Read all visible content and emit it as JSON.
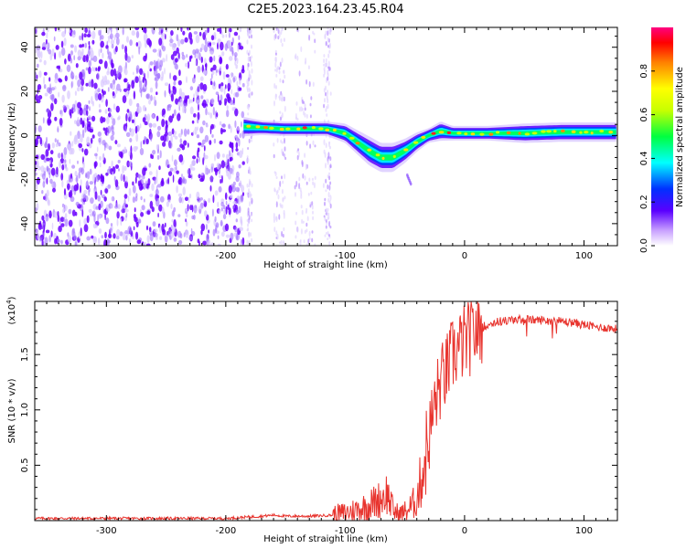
{
  "title": "C2E5.2023.164.23.45.R04",
  "colors": {
    "snr_line": "#e8342e",
    "noise_purple": "#7a00ff",
    "axis": "#000000"
  },
  "chart_data": [
    {
      "type": "heatmap",
      "title": "C2E5.2023.164.23.45.R04",
      "xlabel": "Height of straight line (km)",
      "ylabel": "Frequency (Hz)",
      "xlim": [
        -360,
        128
      ],
      "ylim": [
        -50,
        49
      ],
      "x_ticks": [
        -300,
        -200,
        -100,
        0,
        100
      ],
      "y_ticks": [
        -40,
        -20,
        0,
        20,
        40
      ],
      "colorbar": {
        "label": "Normalized spectral amplitude",
        "range": [
          0,
          1
        ],
        "ticks": [
          0.0,
          0.2,
          0.4,
          0.6,
          0.8
        ],
        "colormap": "rainbow"
      },
      "ridge": {
        "x": [
          -185,
          -170,
          -150,
          -130,
          -115,
          -100,
          -90,
          -80,
          -70,
          -60,
          -50,
          -40,
          -30,
          -20,
          -10,
          0,
          20,
          50,
          80,
          110,
          128
        ],
        "y": [
          4,
          3.5,
          3,
          3,
          3,
          1,
          -3,
          -7,
          -10,
          -10,
          -7,
          -3,
          0,
          2,
          1,
          1,
          1,
          1,
          1.5,
          1.5,
          1.5
        ],
        "width_hz": [
          4,
          3,
          3,
          3,
          3,
          4,
          5,
          6,
          6,
          6,
          5,
          4,
          3,
          4,
          3,
          3,
          3,
          4,
          4,
          4,
          4
        ]
      },
      "noise_region_x": [
        -360,
        -185
      ]
    },
    {
      "type": "line",
      "xlabel": "Height of straight line (km)",
      "ylabel": "SNR (10 * v/v)",
      "y_scale_note": "(x10",
      "y_scale_exp": "4",
      "xlim": [
        -360,
        128
      ],
      "ylim": [
        0,
        1.98
      ],
      "x_ticks": [
        -300,
        -200,
        -100,
        0,
        100
      ],
      "y_ticks": [
        0.5,
        1.0,
        1.5
      ],
      "y_tick_labels": [
        "0.5",
        "1.0",
        "1.5"
      ],
      "series": [
        {
          "x": [
            -360,
            -300,
            -250,
            -200,
            -170,
            -160,
            -150,
            -130,
            -110,
            -100,
            -90,
            -80,
            -70,
            -65,
            -60,
            -55,
            -50,
            -45,
            -40,
            -35,
            -30,
            -25,
            -20,
            -15,
            -10,
            -5,
            0,
            5,
            10,
            15,
            20,
            25,
            30,
            40,
            50,
            60,
            70,
            80,
            90,
            100,
            110,
            120,
            128
          ],
          "y": [
            0.02,
            0.02,
            0.02,
            0.02,
            0.04,
            0.05,
            0.04,
            0.04,
            0.05,
            0.07,
            0.1,
            0.14,
            0.2,
            0.25,
            0.1,
            0.05,
            0.08,
            0.12,
            0.2,
            0.45,
            0.75,
            1.05,
            1.25,
            1.35,
            1.5,
            1.55,
            1.62,
            1.65,
            1.72,
            1.75,
            1.77,
            1.79,
            1.8,
            1.81,
            1.82,
            1.81,
            1.81,
            1.8,
            1.79,
            1.77,
            1.75,
            1.74,
            1.73
          ]
        }
      ]
    }
  ]
}
